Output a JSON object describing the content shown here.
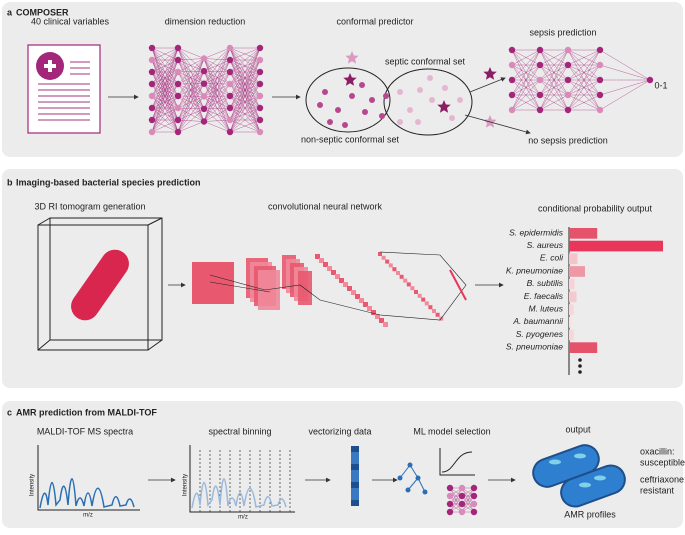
{
  "panel_a": {
    "label": "a",
    "title": "COMPOSER",
    "input": "40 clinical variables",
    "step1": "dimension reduction",
    "step2": "conformal predictor",
    "septic_set": "septic conformal set",
    "non_septic_set": "non-septic conformal set",
    "sepsis": "sepsis prediction",
    "output_range": "0-1",
    "no_sepsis": "no sepsis prediction"
  },
  "panel_b": {
    "label": "b",
    "title": "Imaging-based bacterial species prediction",
    "step1": "3D RI tomogram generation",
    "step2": "convolutional neural network",
    "chart_data": {
      "type": "bar",
      "orientation": "horizontal",
      "title": "conditional probability output",
      "categories": [
        "S. epidermidis",
        "S. aureus",
        "E. coli",
        "K. pneumoniae",
        "B. subtilis",
        "E. faecalis",
        "M. luteus",
        "A. baumannii",
        "S. pyogenes",
        "S. pneumoniae"
      ],
      "values": [
        0.3,
        1.0,
        0.09,
        0.17,
        0.06,
        0.08,
        0.05,
        0.03,
        0.05,
        0.3
      ],
      "colors": [
        "#e5536b",
        "#e8375a",
        "#f5c3c9",
        "#ef97a4",
        "#f7d3d8",
        "#f5c9cf",
        "#f7d6da",
        "#f9e1e4",
        "#f7d6da",
        "#e5536b"
      ]
    }
  },
  "panel_c": {
    "label": "c",
    "title": "AMR prediction from MALDI-TOF",
    "step1": "MALDI-TOF MS spectra",
    "step2": "spectral binning",
    "step3": "vectorizing data",
    "step4": "ML model selection",
    "step5": "output",
    "y_axis": "Intensity",
    "x_axis": "m/z",
    "drug1": "oxacillin:",
    "result1": "susceptible",
    "drug2": "ceftriaxone:",
    "result2": "resistant",
    "footer": "AMR profiles"
  }
}
